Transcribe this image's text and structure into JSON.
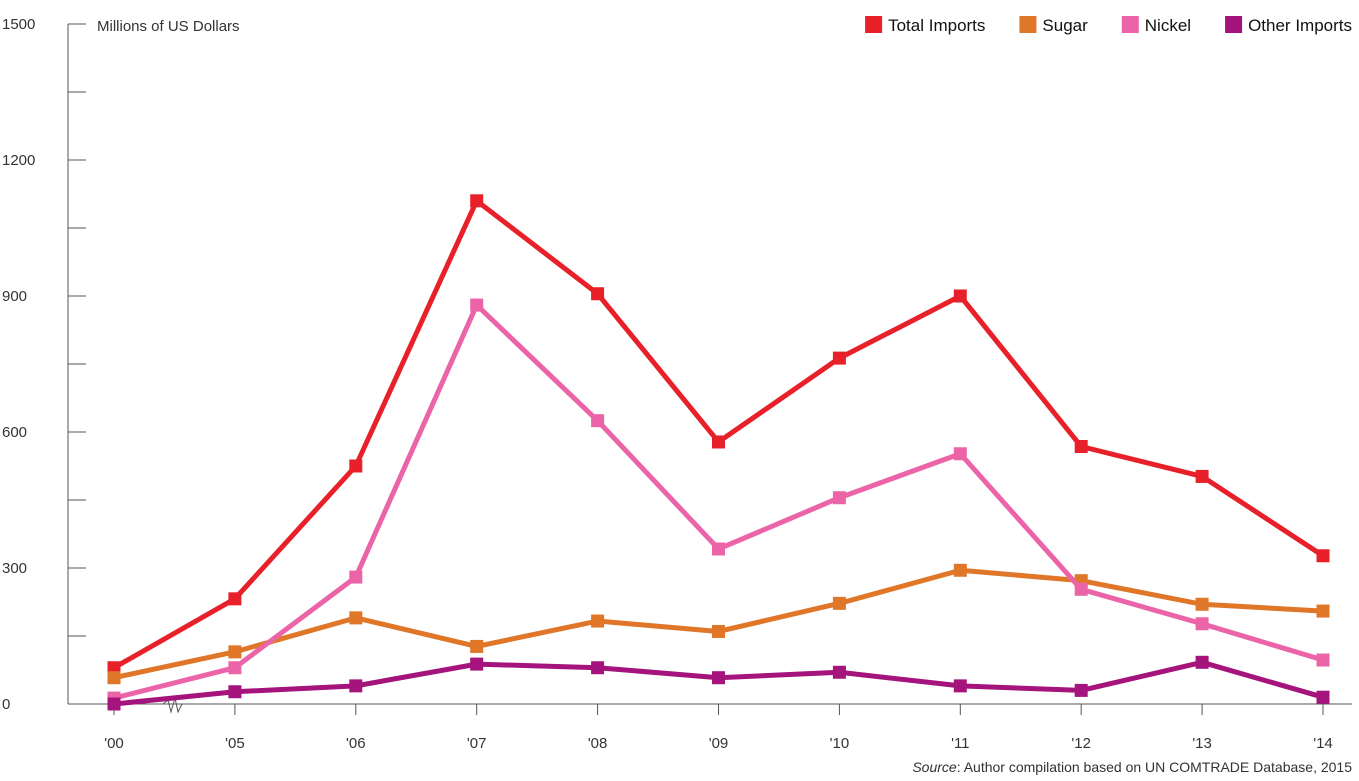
{
  "chart_data": {
    "type": "line",
    "title": "",
    "ylabel": "Millions of US Dollars",
    "xlabel": "",
    "categories": [
      "'00",
      "'05",
      "'06",
      "'07",
      "'08",
      "'09",
      "'10",
      "'11",
      "'12",
      "'13",
      "'14"
    ],
    "ylim": [
      0,
      1500
    ],
    "yticks": [
      0,
      300,
      600,
      900,
      1200,
      1500
    ],
    "grid": false,
    "legend_position": "top-right",
    "axis_break_note": "broken x-axis between '00 and '05",
    "series": [
      {
        "name": "Total Imports",
        "color": "#e8202a",
        "values": [
          80,
          232,
          525,
          1110,
          905,
          578,
          763,
          900,
          568,
          502,
          327
        ]
      },
      {
        "name": "Sugar",
        "color": "#e07628",
        "values": [
          58,
          115,
          190,
          127,
          183,
          160,
          222,
          295,
          272,
          220,
          205
        ]
      },
      {
        "name": "Nickel",
        "color": "#ec64a8",
        "values": [
          13,
          80,
          280,
          880,
          625,
          342,
          455,
          552,
          253,
          177,
          97
        ]
      },
      {
        "name": "Other Imports",
        "color": "#a5137c",
        "values": [
          0,
          27,
          40,
          88,
          80,
          58,
          70,
          40,
          30,
          92,
          15
        ]
      }
    ]
  },
  "source": {
    "label": "Source",
    "text": ": Author compilation based on UN COMTRADE Database, 2015"
  }
}
